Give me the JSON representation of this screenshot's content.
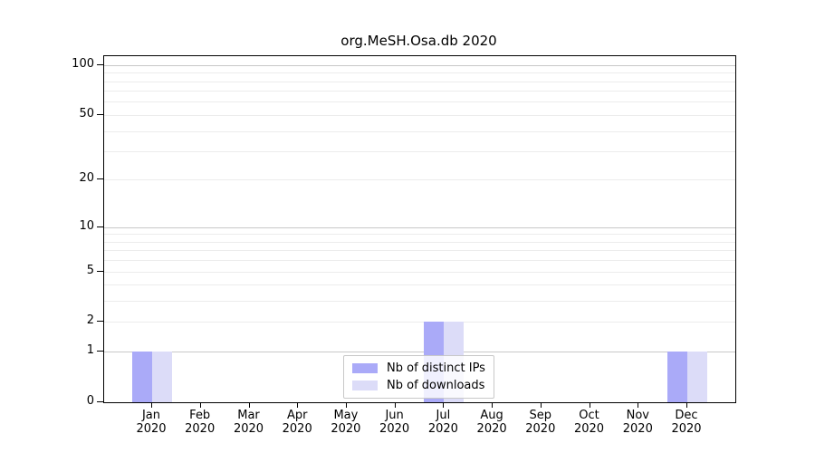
{
  "chart_data": {
    "type": "bar",
    "title": "org.MeSH.Osa.db 2020",
    "year": "2020",
    "months": [
      "Jan",
      "Feb",
      "Mar",
      "Apr",
      "May",
      "Jun",
      "Jul",
      "Aug",
      "Sep",
      "Oct",
      "Nov",
      "Dec"
    ],
    "categories": [
      "Jan 2020",
      "Feb 2020",
      "Mar 2020",
      "Apr 2020",
      "May 2020",
      "Jun 2020",
      "Jul 2020",
      "Aug 2020",
      "Sep 2020",
      "Oct 2020",
      "Nov 2020",
      "Dec 2020"
    ],
    "series": [
      {
        "name": "Nb of distinct IPs",
        "color": "#aaaaf8",
        "values": [
          1,
          0,
          0,
          0,
          0,
          0,
          2,
          0,
          0,
          0,
          0,
          1
        ]
      },
      {
        "name": "Nb of downloads",
        "color": "#dcdcf8",
        "values": [
          1,
          0,
          0,
          0,
          0,
          0,
          2,
          0,
          0,
          0,
          0,
          1
        ]
      }
    ],
    "yaxis": {
      "scale": "log1p",
      "ticks": [
        0,
        1,
        2,
        5,
        10,
        20,
        50,
        100
      ],
      "major_grid_values": [
        1,
        10,
        100
      ],
      "minor_grid_values": [
        2,
        3,
        4,
        5,
        6,
        7,
        8,
        9,
        20,
        30,
        40,
        50,
        60,
        70,
        80,
        90
      ],
      "ylim": [
        0,
        113
      ]
    },
    "grid": {
      "major_color": "#c8c8c8",
      "minor_color": "#ececec"
    },
    "axis_color": "#000000",
    "legend_position": "bottom-center"
  }
}
